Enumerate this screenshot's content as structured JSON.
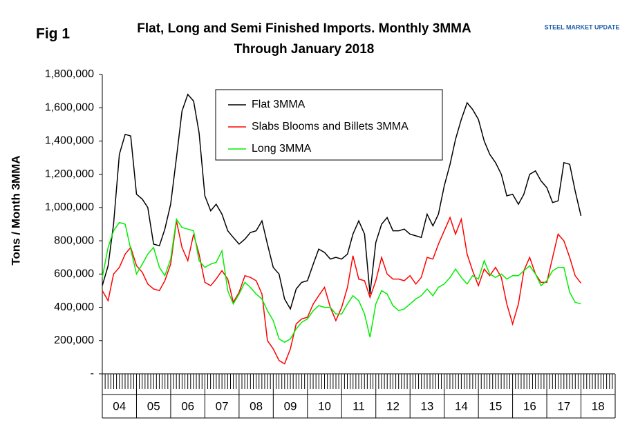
{
  "chart_data": {
    "type": "line",
    "figure_label": "Fig 1",
    "title": "Flat, Long and Semi Finished Imports. Monthly 3MMA",
    "subtitle": "Through January 2018",
    "logo": "STEEL MARKET UPDATE",
    "y_label": "Tons / Month 3MMA",
    "x": [
      2004,
      2004.17,
      2004.33,
      2004.5,
      2004.67,
      2004.83,
      2005,
      2005.17,
      2005.33,
      2005.5,
      2005.67,
      2005.83,
      2006,
      2006.17,
      2006.33,
      2006.5,
      2006.67,
      2006.83,
      2007,
      2007.17,
      2007.33,
      2007.5,
      2007.67,
      2007.83,
      2008,
      2008.17,
      2008.33,
      2008.5,
      2008.67,
      2008.83,
      2009,
      2009.17,
      2009.33,
      2009.5,
      2009.67,
      2009.83,
      2010,
      2010.17,
      2010.33,
      2010.5,
      2010.67,
      2010.83,
      2011,
      2011.17,
      2011.33,
      2011.5,
      2011.67,
      2011.83,
      2012,
      2012.17,
      2012.33,
      2012.5,
      2012.67,
      2012.83,
      2013,
      2013.17,
      2013.33,
      2013.5,
      2013.67,
      2013.83,
      2014,
      2014.17,
      2014.33,
      2014.5,
      2014.67,
      2014.83,
      2015,
      2015.17,
      2015.33,
      2015.5,
      2015.67,
      2015.83,
      2016,
      2016.17,
      2016.33,
      2016.5,
      2016.67,
      2016.83,
      2017,
      2017.17,
      2017.33,
      2017.5,
      2017.67,
      2017.83,
      2018
    ],
    "series": [
      {
        "name": "Flat 3MMA",
        "color": "#000000",
        "values": [
          530000,
          650000,
          900000,
          1320000,
          1440000,
          1430000,
          1080000,
          1050000,
          1000000,
          780000,
          770000,
          870000,
          1020000,
          1300000,
          1580000,
          1680000,
          1640000,
          1450000,
          1070000,
          980000,
          1020000,
          960000,
          860000,
          820000,
          780000,
          810000,
          850000,
          860000,
          920000,
          780000,
          640000,
          600000,
          450000,
          390000,
          510000,
          550000,
          560000,
          660000,
          750000,
          730000,
          690000,
          700000,
          690000,
          720000,
          840000,
          920000,
          840000,
          480000,
          790000,
          900000,
          940000,
          860000,
          860000,
          870000,
          840000,
          830000,
          820000,
          960000,
          890000,
          960000,
          1130000,
          1260000,
          1410000,
          1530000,
          1630000,
          1590000,
          1530000,
          1400000,
          1320000,
          1270000,
          1200000,
          1070000,
          1080000,
          1020000,
          1080000,
          1200000,
          1220000,
          1160000,
          1120000,
          1030000,
          1040000,
          1270000,
          1260000,
          1100000,
          950000
        ]
      },
      {
        "name": "Slabs Blooms and Billets 3MMA",
        "color": "#ff0000",
        "values": [
          500000,
          440000,
          600000,
          640000,
          720000,
          760000,
          650000,
          610000,
          540000,
          510000,
          500000,
          560000,
          660000,
          920000,
          760000,
          680000,
          840000,
          720000,
          550000,
          530000,
          570000,
          620000,
          570000,
          430000,
          490000,
          590000,
          580000,
          560000,
          480000,
          200000,
          150000,
          80000,
          60000,
          150000,
          300000,
          330000,
          340000,
          420000,
          470000,
          520000,
          400000,
          320000,
          400000,
          520000,
          710000,
          570000,
          560000,
          460000,
          560000,
          700000,
          600000,
          570000,
          570000,
          560000,
          590000,
          540000,
          580000,
          700000,
          690000,
          780000,
          860000,
          940000,
          840000,
          930000,
          720000,
          620000,
          530000,
          630000,
          590000,
          640000,
          580000,
          420000,
          300000,
          420000,
          620000,
          700000,
          600000,
          550000,
          550000,
          700000,
          840000,
          800000,
          700000,
          590000,
          545000
        ]
      },
      {
        "name": "Long 3MMA",
        "color": "#00ee00",
        "values": [
          580000,
          760000,
          860000,
          910000,
          900000,
          750000,
          600000,
          660000,
          720000,
          760000,
          640000,
          590000,
          690000,
          930000,
          880000,
          870000,
          860000,
          680000,
          640000,
          660000,
          670000,
          740000,
          500000,
          420000,
          480000,
          550000,
          520000,
          480000,
          450000,
          380000,
          320000,
          210000,
          190000,
          210000,
          270000,
          310000,
          330000,
          380000,
          410000,
          400000,
          400000,
          360000,
          360000,
          420000,
          470000,
          440000,
          360000,
          220000,
          420000,
          500000,
          480000,
          410000,
          380000,
          390000,
          420000,
          450000,
          470000,
          510000,
          470000,
          520000,
          540000,
          580000,
          630000,
          580000,
          540000,
          590000,
          570000,
          680000,
          600000,
          580000,
          600000,
          570000,
          590000,
          590000,
          620000,
          650000,
          600000,
          530000,
          560000,
          620000,
          640000,
          640000,
          490000,
          430000,
          420000
        ]
      }
    ],
    "xlim": [
      2004,
      2019
    ],
    "xticks": [
      {
        "value": 2004.5,
        "label": "04"
      },
      {
        "value": 2005.5,
        "label": "05"
      },
      {
        "value": 2006.5,
        "label": "06"
      },
      {
        "value": 2007.5,
        "label": "07"
      },
      {
        "value": 2008.5,
        "label": "08"
      },
      {
        "value": 2009.5,
        "label": "09"
      },
      {
        "value": 2010.5,
        "label": "10"
      },
      {
        "value": 2011.5,
        "label": "11"
      },
      {
        "value": 2012.5,
        "label": "12"
      },
      {
        "value": 2013.5,
        "label": "13"
      },
      {
        "value": 2014.5,
        "label": "14"
      },
      {
        "value": 2015.5,
        "label": "15"
      },
      {
        "value": 2016.5,
        "label": "16"
      },
      {
        "value": 2017.5,
        "label": "17"
      },
      {
        "value": 2018.5,
        "label": "18"
      }
    ],
    "ylim": [
      0,
      1800000
    ],
    "yticks": [
      {
        "value": 0,
        "label": "-"
      },
      {
        "value": 200000,
        "label": "200,000"
      },
      {
        "value": 400000,
        "label": "400,000"
      },
      {
        "value": 600000,
        "label": "600,000"
      },
      {
        "value": 800000,
        "label": "800,000"
      },
      {
        "value": 1000000,
        "label": "1,000,000"
      },
      {
        "value": 1200000,
        "label": "1,200,000"
      },
      {
        "value": 1400000,
        "label": "1,400,000"
      },
      {
        "value": 1600000,
        "label": "1,600,000"
      },
      {
        "value": 1800000,
        "label": "1,800,000"
      }
    ],
    "grid": false,
    "legend": "top"
  }
}
